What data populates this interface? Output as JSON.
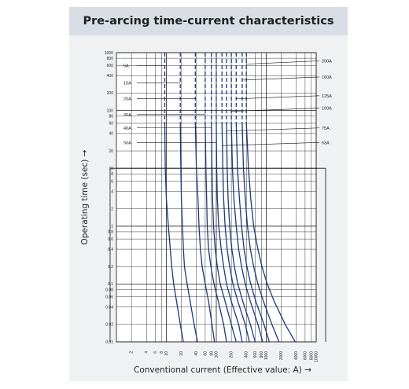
{
  "chart_data": {
    "type": "line",
    "title": "Pre-arcing time-current characteristics",
    "xlabel": "Conventional current (Effective value: A) →",
    "ylabel": "Operating time (sec) →",
    "x_scale": "log",
    "y_scale": "log",
    "xlim": [
      1,
      10000
    ],
    "ylim": [
      0.01,
      1000
    ],
    "x_ticks": [
      "2",
      "4",
      "6",
      "8",
      "10",
      "20",
      "40",
      "60",
      "80",
      "100",
      "200",
      "400",
      "600",
      "800",
      "1000",
      "2000",
      "4000",
      "6000",
      "8000",
      "10000"
    ],
    "y_ticks": [
      "1000",
      "800",
      "600",
      "400",
      "200",
      "100",
      "80",
      "60",
      "40",
      "20",
      "10",
      "8",
      "6",
      "4",
      "2",
      "1",
      "0.8",
      "0.6",
      "0.4",
      "0.2",
      "0.1",
      "0.08",
      "0.06",
      "0.04",
      "0.02",
      "0.01"
    ],
    "grid": true,
    "line_color": "#1a3a78",
    "series": [
      {
        "name": "5A",
        "label_side": "left",
        "label_y": 600,
        "points": [
          [
            9.3,
            1000
          ],
          [
            9.3,
            60
          ],
          [
            9.5,
            10
          ],
          [
            10,
            3
          ],
          [
            11,
            1
          ],
          [
            12,
            0.4
          ],
          [
            12.8,
            0.2
          ],
          [
            14,
            0.1
          ],
          [
            16,
            0.05
          ],
          [
            19,
            0.02
          ],
          [
            22,
            0.01
          ]
        ]
      },
      {
        "name": "10A",
        "label_side": "left",
        "label_y": 300,
        "points": [
          [
            19,
            1000
          ],
          [
            19,
            60
          ],
          [
            19.5,
            10
          ],
          [
            20,
            3
          ],
          [
            21,
            1
          ],
          [
            22,
            0.4
          ],
          [
            23,
            0.2
          ],
          [
            26,
            0.1
          ],
          [
            30,
            0.05
          ],
          [
            36,
            0.02
          ],
          [
            42,
            0.01
          ]
        ]
      },
      {
        "name": "20A",
        "label_side": "left",
        "label_y": 160,
        "points": [
          [
            38,
            1000
          ],
          [
            38,
            60
          ],
          [
            40,
            10
          ],
          [
            43,
            3
          ],
          [
            45,
            1
          ],
          [
            48,
            0.4
          ],
          [
            52,
            0.2
          ],
          [
            60,
            0.1
          ],
          [
            70,
            0.05
          ],
          [
            82,
            0.02
          ],
          [
            92,
            0.01
          ]
        ]
      },
      {
        "name": "30A",
        "label_side": "left",
        "label_y": 85,
        "points": [
          [
            60,
            1000
          ],
          [
            60,
            60
          ],
          [
            62,
            10
          ],
          [
            64,
            3
          ],
          [
            66,
            1
          ],
          [
            70,
            0.4
          ],
          [
            78,
            0.2
          ],
          [
            90,
            0.1
          ],
          [
            110,
            0.05
          ],
          [
            140,
            0.02
          ],
          [
            160,
            0.01
          ]
        ]
      },
      {
        "name": "40A",
        "label_side": "left",
        "label_y": 50,
        "points": [
          [
            80,
            1000
          ],
          [
            80,
            60
          ],
          [
            82,
            10
          ],
          [
            84,
            3
          ],
          [
            88,
            1
          ],
          [
            95,
            0.4
          ],
          [
            105,
            0.2
          ],
          [
            120,
            0.1
          ],
          [
            150,
            0.05
          ],
          [
            200,
            0.02
          ],
          [
            250,
            0.01
          ]
        ]
      },
      {
        "name": "50A",
        "label_side": "left",
        "label_y": 28,
        "points": [
          [
            100,
            1000
          ],
          [
            100,
            60
          ],
          [
            102,
            10
          ],
          [
            105,
            3
          ],
          [
            112,
            1
          ],
          [
            125,
            0.4
          ],
          [
            140,
            0.2
          ],
          [
            160,
            0.1
          ],
          [
            200,
            0.05
          ],
          [
            280,
            0.02
          ],
          [
            330,
            0.01
          ]
        ]
      },
      {
        "name": "63A",
        "label_side": "right",
        "label_y": 28,
        "points": [
          [
            130,
            1000
          ],
          [
            130,
            60
          ],
          [
            135,
            10
          ],
          [
            140,
            3
          ],
          [
            150,
            1
          ],
          [
            165,
            0.4
          ],
          [
            185,
            0.2
          ],
          [
            215,
            0.1
          ],
          [
            270,
            0.05
          ],
          [
            380,
            0.02
          ],
          [
            460,
            0.01
          ]
        ]
      },
      {
        "name": "75A",
        "label_side": "right",
        "label_y": 50,
        "points": [
          [
            160,
            1000
          ],
          [
            160,
            60
          ],
          [
            165,
            10
          ],
          [
            172,
            3
          ],
          [
            185,
            1
          ],
          [
            205,
            0.4
          ],
          [
            230,
            0.2
          ],
          [
            270,
            0.1
          ],
          [
            340,
            0.05
          ],
          [
            480,
            0.02
          ],
          [
            600,
            0.01
          ]
        ]
      },
      {
        "name": "100A",
        "label_side": "right",
        "label_y": 110,
        "points": [
          [
            200,
            1000
          ],
          [
            200,
            60
          ],
          [
            210,
            10
          ],
          [
            225,
            3
          ],
          [
            250,
            1
          ],
          [
            280,
            0.4
          ],
          [
            320,
            0.2
          ],
          [
            380,
            0.1
          ],
          [
            480,
            0.05
          ],
          [
            680,
            0.02
          ],
          [
            850,
            0.01
          ]
        ]
      },
      {
        "name": "125A",
        "label_side": "right",
        "label_y": 180,
        "points": [
          [
            250,
            1000
          ],
          [
            250,
            60
          ],
          [
            265,
            10
          ],
          [
            290,
            3
          ],
          [
            320,
            1
          ],
          [
            360,
            0.4
          ],
          [
            410,
            0.2
          ],
          [
            490,
            0.1
          ],
          [
            620,
            0.05
          ],
          [
            900,
            0.02
          ],
          [
            1150,
            0.01
          ]
        ]
      },
      {
        "name": "160A",
        "label_side": "right",
        "label_y": 380,
        "points": [
          [
            330,
            1000
          ],
          [
            330,
            60
          ],
          [
            350,
            10
          ],
          [
            380,
            3
          ],
          [
            420,
            1
          ],
          [
            480,
            0.4
          ],
          [
            560,
            0.2
          ],
          [
            680,
            0.1
          ],
          [
            880,
            0.05
          ],
          [
            1300,
            0.02
          ],
          [
            1800,
            0.01
          ]
        ]
      },
      {
        "name": "200A",
        "label_side": "right",
        "label_y": 720,
        "points": [
          [
            400,
            1000
          ],
          [
            400,
            60
          ],
          [
            440,
            10
          ],
          [
            490,
            3
          ],
          [
            560,
            1
          ],
          [
            680,
            0.4
          ],
          [
            820,
            0.2
          ],
          [
            1050,
            0.1
          ],
          [
            1450,
            0.05
          ],
          [
            2400,
            0.02
          ],
          [
            3800,
            0.01
          ]
        ]
      }
    ]
  }
}
